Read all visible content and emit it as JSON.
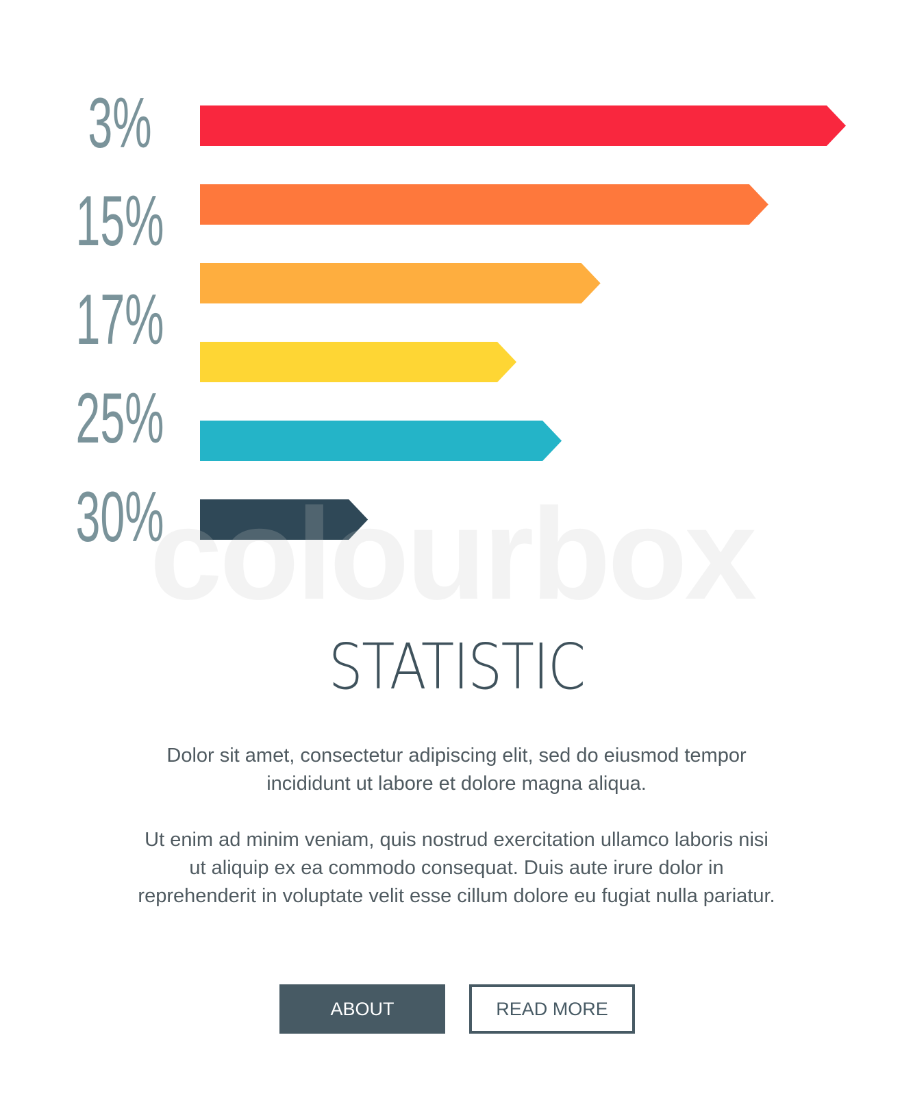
{
  "chart_data": {
    "type": "bar",
    "orientation": "horizontal",
    "categories": [
      "3%",
      "15%",
      "17%",
      "25%",
      "30%"
    ],
    "labels": [
      "3%",
      "15%",
      "17%",
      "25%",
      "30%"
    ],
    "bars": [
      {
        "label": "3%",
        "relative_length": 1.0,
        "color": "#f9273e"
      },
      {
        "label": "15%",
        "relative_length": 0.88,
        "color": "#fe783c"
      },
      {
        "label": "17%",
        "relative_length": 0.62,
        "color": "#feae3f"
      },
      {
        "label": "",
        "relative_length": 0.49,
        "color": "#fed634"
      },
      {
        "label": "25%",
        "relative_length": 0.56,
        "color": "#24b4c8"
      },
      {
        "label": "30%",
        "relative_length": 0.26,
        "color": "#2f4857"
      }
    ],
    "label_color": "#7a939a",
    "grid": false,
    "legend": "none"
  },
  "watermark": "colourbox",
  "title": "STATISTIC",
  "paragraphs": [
    "Dolor sit amet, consectetur adipiscing elit, sed do eiusmod tempor incididunt ut labore et dolore magna aliqua.",
    "Ut enim ad minim veniam, quis nostrud exercitation ullamco laboris nisi ut aliquip ex ea commodo consequat. Duis aute irure dolor in reprehenderit in voluptate velit esse cillum dolore eu fugiat nulla pariatur."
  ],
  "buttons": {
    "about": "ABOUT",
    "read_more": "READ MORE"
  },
  "colors": {
    "accent_dark": "#475a64",
    "title": "#3f525c"
  }
}
